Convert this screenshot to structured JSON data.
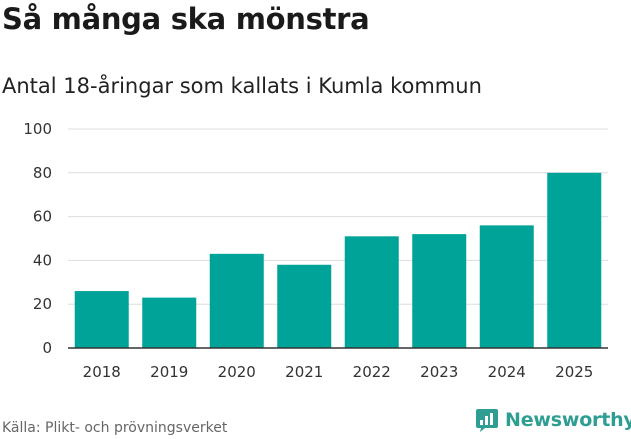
{
  "header": {
    "title": "Så många ska mönstra",
    "subtitle": "Antal 18-åringar som kallats i Kumla kommun"
  },
  "footer": {
    "source": "Källa: Plikt- och prövningsverket",
    "brand": "Newsworthy"
  },
  "colors": {
    "bar": "#00a398",
    "grid": "#dddddd",
    "axis": "#333333",
    "brand": "#2e9e93"
  },
  "chart_data": {
    "type": "bar",
    "title": "Så många ska mönstra",
    "subtitle": "Antal 18-åringar som kallats i Kumla kommun",
    "categories": [
      "2018",
      "2019",
      "2020",
      "2021",
      "2022",
      "2023",
      "2024",
      "2025"
    ],
    "values": [
      26,
      23,
      43,
      38,
      51,
      52,
      56,
      80
    ],
    "ylim": [
      0,
      100
    ],
    "yticks": [
      0,
      20,
      40,
      60,
      80,
      100
    ],
    "xlabel": "",
    "ylabel": "",
    "grid": true
  }
}
